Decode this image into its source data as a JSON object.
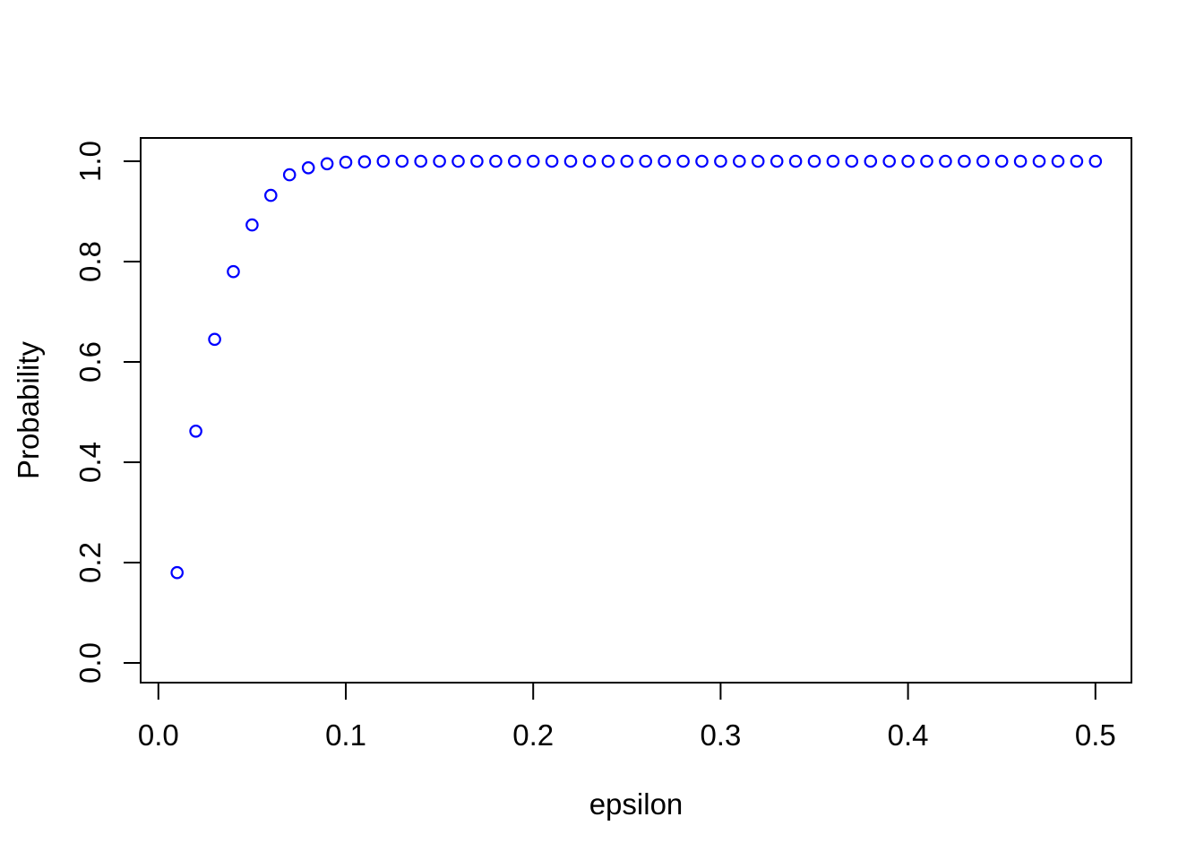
{
  "figure": {
    "background_color": "#ffffff",
    "axis_color": "#000000",
    "text_color": "#000000"
  },
  "chart_data": {
    "type": "scatter",
    "title": "",
    "xlabel": "epsilon",
    "ylabel": "Probability",
    "marker": "open-circle",
    "point_color": "#0000ff",
    "grid": false,
    "legend": null,
    "xlim": [
      0.0,
      0.5
    ],
    "ylim": [
      0.0,
      1.0
    ],
    "x_ticks": [
      0.0,
      0.1,
      0.2,
      0.3,
      0.4,
      0.5
    ],
    "x_tick_labels": [
      "0.0",
      "0.1",
      "0.2",
      "0.3",
      "0.4",
      "0.5"
    ],
    "y_ticks": [
      0.0,
      0.2,
      0.4,
      0.6,
      0.8,
      1.0
    ],
    "y_tick_labels": [
      "0.0",
      "0.2",
      "0.4",
      "0.6",
      "0.8",
      "1.0"
    ],
    "x": [
      0.01,
      0.02,
      0.03,
      0.04,
      0.05,
      0.06,
      0.07,
      0.08,
      0.09,
      0.1,
      0.11,
      0.12,
      0.13,
      0.14,
      0.15,
      0.16,
      0.17,
      0.18,
      0.19,
      0.2,
      0.21,
      0.22,
      0.23,
      0.24,
      0.25,
      0.26,
      0.27,
      0.28,
      0.29,
      0.3,
      0.31,
      0.32,
      0.33,
      0.34,
      0.35,
      0.36,
      0.37,
      0.38,
      0.39,
      0.4,
      0.41,
      0.42,
      0.43,
      0.44,
      0.45,
      0.46,
      0.47,
      0.48,
      0.49,
      0.5
    ],
    "y": [
      0.18,
      0.462,
      0.645,
      0.78,
      0.873,
      0.932,
      0.973,
      0.987,
      0.995,
      0.998,
      0.999,
      1.0,
      1.0,
      1.0,
      1.0,
      1.0,
      1.0,
      1.0,
      1.0,
      1.0,
      1.0,
      1.0,
      1.0,
      1.0,
      1.0,
      1.0,
      1.0,
      1.0,
      1.0,
      1.0,
      1.0,
      1.0,
      1.0,
      1.0,
      1.0,
      1.0,
      1.0,
      1.0,
      1.0,
      1.0,
      1.0,
      1.0,
      1.0,
      1.0,
      1.0,
      1.0,
      1.0,
      1.0,
      1.0,
      1.0
    ]
  }
}
